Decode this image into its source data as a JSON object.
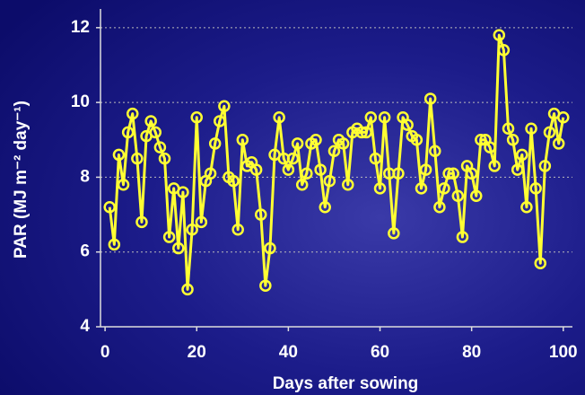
{
  "chart_data": {
    "type": "line",
    "x_label": "Days after sowing",
    "y_label": "PAR (MJ m⁻² day⁻¹)",
    "x": [
      1,
      2,
      3,
      4,
      5,
      6,
      7,
      8,
      9,
      10,
      11,
      12,
      13,
      14,
      15,
      16,
      17,
      18,
      19,
      20,
      21,
      22,
      23,
      24,
      25,
      26,
      27,
      28,
      29,
      30,
      31,
      32,
      33,
      34,
      35,
      36,
      37,
      38,
      39,
      40,
      41,
      42,
      43,
      44,
      45,
      46,
      47,
      48,
      49,
      50,
      51,
      52,
      53,
      54,
      55,
      56,
      57,
      58,
      59,
      60,
      61,
      62,
      63,
      64,
      65,
      66,
      67,
      68,
      69,
      70,
      71,
      72,
      73,
      74,
      75,
      76,
      77,
      78,
      79,
      80,
      81,
      82,
      83,
      84,
      85,
      86,
      87,
      88,
      89,
      90,
      91,
      92,
      93,
      94,
      95,
      96,
      97,
      98,
      99,
      100
    ],
    "series": [
      {
        "color": "#ffff33",
        "values": [
          7.2,
          6.2,
          8.6,
          7.8,
          9.2,
          9.7,
          8.5,
          6.8,
          9.1,
          9.5,
          9.2,
          8.8,
          8.5,
          6.4,
          7.7,
          6.1,
          7.6,
          5.0,
          6.6,
          9.6,
          6.8,
          7.9,
          8.1,
          8.9,
          9.5,
          9.9,
          8.0,
          7.9,
          6.6,
          9.0,
          8.3,
          8.4,
          8.2,
          7.0,
          5.1,
          6.1,
          8.6,
          9.6,
          8.5,
          8.2,
          8.5,
          8.9,
          7.8,
          8.1,
          8.9,
          9.0,
          8.2,
          7.2,
          7.9,
          8.7,
          9.0,
          8.9,
          7.8,
          9.2,
          9.3,
          9.2,
          9.2,
          9.6,
          8.5,
          7.7,
          9.6,
          8.1,
          6.5,
          8.1,
          9.6,
          9.4,
          9.1,
          9.0,
          7.7,
          8.2,
          10.1,
          8.7,
          7.2,
          7.7,
          8.1,
          8.1,
          7.5,
          6.4,
          8.3,
          8.1,
          7.5,
          9.0,
          9.0,
          8.8,
          8.3,
          11.8,
          11.4,
          9.3,
          9.0,
          8.2,
          8.6,
          7.2,
          9.3,
          7.7,
          5.7,
          8.3,
          9.2,
          9.7,
          8.9,
          9.6
        ]
      }
    ],
    "xlim": [
      -1,
      102
    ],
    "xticks": [
      0,
      20,
      40,
      60,
      80,
      100
    ],
    "ylim": [
      4,
      12.5
    ],
    "yticks": [
      4,
      6,
      8,
      10,
      12
    ],
    "grid": true
  }
}
